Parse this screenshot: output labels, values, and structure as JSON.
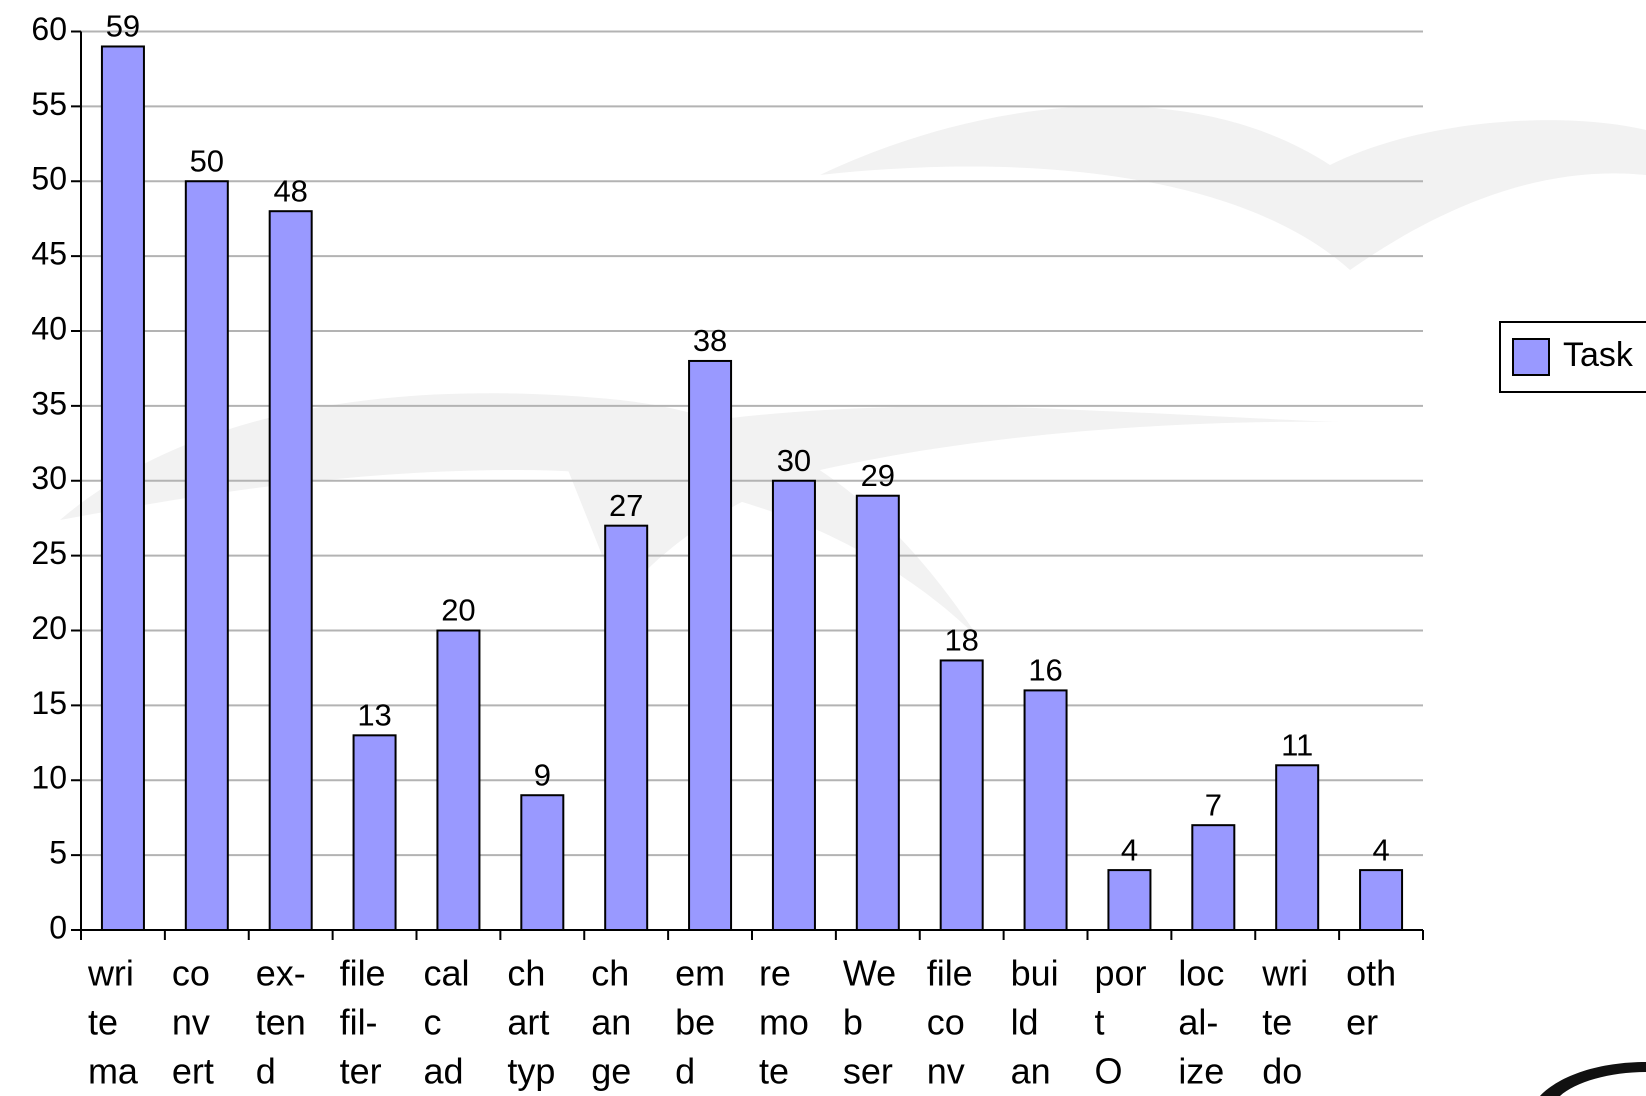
{
  "chart_data": {
    "type": "bar",
    "categories": [
      [
        "wri",
        "te",
        "ma"
      ],
      [
        "co",
        "nv",
        "ert"
      ],
      [
        "ex-",
        "ten",
        "d"
      ],
      [
        "file",
        "fil-",
        "ter"
      ],
      [
        "cal",
        "c",
        "ad"
      ],
      [
        "ch",
        "art",
        "typ"
      ],
      [
        "ch",
        "an",
        "ge"
      ],
      [
        "em",
        "be",
        "d"
      ],
      [
        "re",
        "mo",
        "te"
      ],
      [
        "We",
        "b",
        "ser"
      ],
      [
        "file",
        "co",
        "nv"
      ],
      [
        "bui",
        "ld",
        "an"
      ],
      [
        "por",
        "t",
        "O"
      ],
      [
        "loc",
        "al-",
        "ize"
      ],
      [
        "wri",
        "te",
        "do"
      ],
      [
        "oth",
        "er"
      ]
    ],
    "series": [
      {
        "name": "Task",
        "color": "#9999ff",
        "values": [
          59,
          50,
          48,
          13,
          20,
          9,
          27,
          38,
          30,
          29,
          18,
          16,
          4,
          7,
          11,
          4
        ]
      }
    ],
    "ylim": [
      0,
      60
    ],
    "yticks": [
      0,
      5,
      10,
      15,
      20,
      25,
      30,
      35,
      40,
      45,
      50,
      55,
      60
    ],
    "grid": true
  }
}
